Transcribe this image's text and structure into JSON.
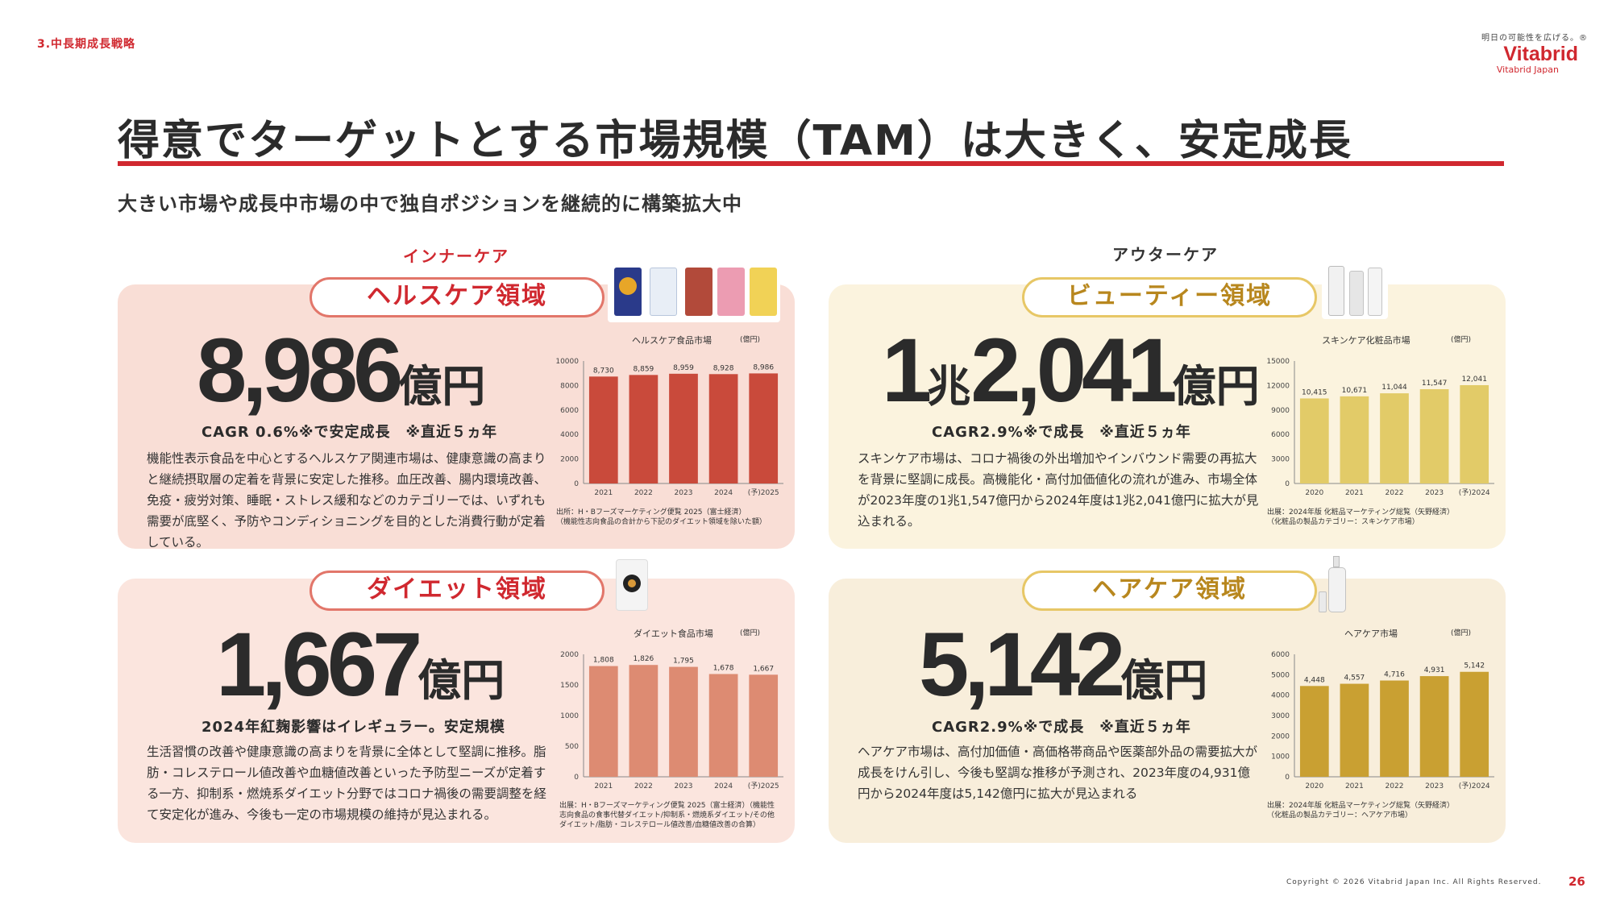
{
  "header": {
    "section": "3.中長期成長戦略",
    "brand_tagline": "明日の可能性を広げる。®",
    "brand_name": "Vitabrid",
    "brand_sub": "Vitabrid Japan",
    "title": "得意でターゲットとする市場規模（TAM）は大きく、安定成長",
    "subtitle": "大きい市場や成長中市場の中で独自ポジションを継続的に構築拡大中"
  },
  "categories": {
    "inner": "インナーケア",
    "outer": "アウターケア"
  },
  "panels": {
    "health": {
      "label": "ヘルスケア領域",
      "number": "8,986",
      "unit": "億円",
      "cagr": "CAGR 0.6%※で安定成長　※直近５ヵ年",
      "description": "機能性表示食品を中心とするヘルスケア関連市場は、健康意識の高まりと継続摂取層の定着を背景に安定した推移。血圧改善、腸内環境改善、免疫・疲労対策、睡眠・ストレス緩和などのカテゴリーでは、いずれも需要が底堅く、予防やコンディショニングを目的とした消費行動が定着している。",
      "chart_title": "ヘルスケア食品市場",
      "chart_unit": "(億円)",
      "source": "出所：H・Bフーズマーケティング便覧 2025（富士経済）\n（機能性志向食品の合計から下記のダイエット領域を除いた額）"
    },
    "beauty": {
      "label": "ビューティー領域",
      "number_a": "1",
      "unit_a": "兆",
      "number_b": "2,041",
      "unit": "億円",
      "cagr": "CAGR2.9%※で成長　※直近５ヵ年",
      "description": "スキンケア市場は、コロナ禍後の外出増加やインバウンド需要の再拡大を背景に堅調に成長。高機能化・高付加価値化の流れが進み、市場全体が2023年度の1兆1,547億円から2024年度は1兆2,041億円に拡大が見込まれる。",
      "chart_title": "スキンケア化粧品市場",
      "chart_unit": "(億円)",
      "source": "出展：2024年版 化粧品マーケティング総覧（矢野経済）\n（化粧品の製品カテゴリー：スキンケア市場）"
    },
    "diet": {
      "label": "ダイエット領域",
      "number": "1,667",
      "unit": "億円",
      "cagr": "2024年紅麹影響はイレギュラー。安定規模",
      "description": "生活習慣の改善や健康意識の高まりを背景に全体として堅調に推移。脂肪・コレステロール値改善や血糖値改善といった予防型ニーズが定着する一方、抑制系・燃焼系ダイエット分野ではコロナ禍後の需要調整を経て安定化が進み、今後も一定の市場規模の維持が見込まれる。",
      "chart_title": "ダイエット食品市場",
      "chart_unit": "(億円)",
      "source": "出展：H・Bフーズマーケティング便覧 2025（富士経済）（機能性志向食品の食事代替ダイエット/抑制系・燃焼系ダイエット/その他ダイエット/脂肪・コレステロール値改善/血糖値改善の合算）"
    },
    "hair": {
      "label": "ヘアケア領域",
      "number": "5,142",
      "unit": "億円",
      "cagr": "CAGR2.9%※で成長　※直近５ヵ年",
      "description": "ヘアケア市場は、高付加価値・高価格帯商品や医薬部外品の需要拡大が成長をけん引し、今後も堅調な推移が予測され、2023年度の4,931億円から2024年度は5,142億円に拡大が見込まれる",
      "chart_title": "ヘアケア市場",
      "chart_unit": "(億円)",
      "source": "出展：2024年版 化粧品マーケティング総覧（矢野経済）\n（化粧品の製品カテゴリー：ヘアケア市場）"
    }
  },
  "chart_data": [
    {
      "type": "bar",
      "key": "health",
      "categories": [
        "2021",
        "2022",
        "2023",
        "2024",
        "(予)2025"
      ],
      "values": [
        8730,
        8859,
        8959,
        8928,
        8986
      ],
      "value_labels": [
        "8,730",
        "8,859",
        "8,959",
        "8,928",
        "8,986"
      ],
      "yticks": [
        "0",
        "2000",
        "4000",
        "6000",
        "8000",
        "10000"
      ],
      "ylim": [
        0,
        10000
      ],
      "color": "#c94a3b"
    },
    {
      "type": "bar",
      "key": "beauty",
      "categories": [
        "2020",
        "2021",
        "2022",
        "2023",
        "(予)2024"
      ],
      "values": [
        10415,
        10671,
        11044,
        11547,
        12041
      ],
      "value_labels": [
        "10,415",
        "10,671",
        "11,044",
        "11,547",
        "12,041"
      ],
      "yticks": [
        "0",
        "3000",
        "6000",
        "9000",
        "12000",
        "15000"
      ],
      "ylim": [
        0,
        15000
      ],
      "color": "#e2cb68"
    },
    {
      "type": "bar",
      "key": "diet",
      "categories": [
        "2021",
        "2022",
        "2023",
        "2024",
        "(予)2025"
      ],
      "values": [
        1808,
        1826,
        1795,
        1678,
        1667
      ],
      "value_labels": [
        "1,808",
        "1,826",
        "1,795",
        "1,678",
        "1,667"
      ],
      "yticks": [
        "0",
        "500",
        "1000",
        "1500",
        "2000"
      ],
      "ylim": [
        0,
        2000
      ],
      "color": "#dd8b72"
    },
    {
      "type": "bar",
      "key": "hair",
      "categories": [
        "2020",
        "2021",
        "2022",
        "2023",
        "(予)2024"
      ],
      "values": [
        4448,
        4557,
        4716,
        4931,
        5142
      ],
      "value_labels": [
        "4,448",
        "4,557",
        "4,716",
        "4,931",
        "5,142"
      ],
      "yticks": [
        "0",
        "1000",
        "2000",
        "3000",
        "4000",
        "5000",
        "6000"
      ],
      "ylim": [
        0,
        6000
      ],
      "color": "#c9a032"
    }
  ],
  "footer": {
    "copyright": "Copyright © 2026 Vitabrid Japan Inc. All Rights Reserved.",
    "page": "26"
  }
}
